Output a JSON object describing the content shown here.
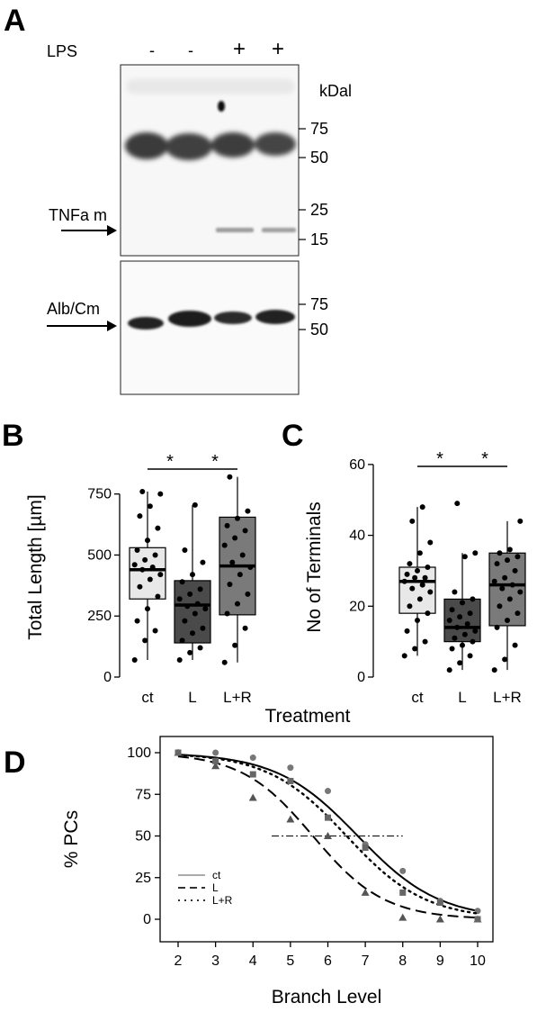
{
  "panels": {
    "a": "A",
    "b": "B",
    "c": "C",
    "d": "D"
  },
  "blot": {
    "lps_label": "LPS",
    "lanes": [
      "-",
      "-",
      "+",
      "+"
    ],
    "kda_label": "kDal",
    "upper_markers": [
      "75",
      "50",
      "25",
      "15"
    ],
    "lower_markers": [
      "75",
      "50"
    ],
    "upper_band_label": "TNFa m",
    "lower_band_label": "Alb/Cm"
  },
  "shared_xlabel": "Treatment",
  "chart_data": [
    {
      "type": "box",
      "panel": "B",
      "ylabel": "Total Length [µm]",
      "xlabel": "",
      "ylim": [
        0,
        900
      ],
      "yticks": [
        0,
        250,
        500,
        750
      ],
      "categories": [
        "ct",
        "L",
        "L+R"
      ],
      "box_colors": [
        "#e8e8e8",
        "#4a4a4a",
        "#7a7a7a"
      ],
      "boxes": [
        {
          "q1": 320,
          "median": 440,
          "q3": 530,
          "whisker_low": 70,
          "whisker_high": 760
        },
        {
          "q1": 140,
          "median": 295,
          "q3": 395,
          "whisker_low": 70,
          "whisker_high": 705
        },
        {
          "q1": 255,
          "median": 455,
          "q3": 655,
          "whisker_low": 60,
          "whisker_high": 820
        }
      ],
      "points": [
        [
          70,
          150,
          190,
          230,
          280,
          330,
          370,
          400,
          420,
          440,
          450,
          460,
          480,
          500,
          520,
          560,
          610,
          660,
          700,
          750,
          760
        ],
        [
          70,
          100,
          120,
          150,
          180,
          200,
          230,
          260,
          280,
          290,
          300,
          320,
          340,
          360,
          390,
          420,
          470,
          520,
          705
        ],
        [
          60,
          130,
          200,
          260,
          300,
          340,
          380,
          420,
          450,
          470,
          500,
          540,
          570,
          600,
          620,
          650,
          680,
          820
        ]
      ],
      "significance": [
        "*",
        "*"
      ]
    },
    {
      "type": "box",
      "panel": "C",
      "ylabel": "No of Terminals",
      "xlabel": "",
      "ylim": [
        0,
        62
      ],
      "yticks": [
        0,
        20,
        40,
        60
      ],
      "categories": [
        "ct",
        "L",
        "L+R"
      ],
      "box_colors": [
        "#e8e8e8",
        "#4a4a4a",
        "#7a7a7a"
      ],
      "boxes": [
        {
          "q1": 18,
          "median": 27,
          "q3": 31,
          "whisker_low": 6,
          "whisker_high": 48
        },
        {
          "q1": 10,
          "median": 14,
          "q3": 22,
          "whisker_low": 2,
          "whisker_high": 35
        },
        {
          "q1": 14.5,
          "median": 26,
          "q3": 35,
          "whisker_low": 2,
          "whisker_high": 44
        }
      ],
      "points": [
        [
          6,
          8,
          10,
          13,
          16,
          18,
          20,
          22,
          24,
          25,
          26,
          27,
          28,
          28,
          29,
          30,
          31,
          32,
          35,
          38,
          44,
          48
        ],
        [
          2,
          4,
          6,
          8,
          9,
          10,
          11,
          12,
          13,
          14,
          15,
          16,
          17,
          18,
          19,
          21,
          22,
          24,
          34,
          35,
          49
        ],
        [
          2,
          5,
          9,
          14,
          16,
          18,
          20,
          22,
          24,
          25,
          26,
          27,
          28,
          30,
          32,
          33,
          34,
          35,
          36,
          44
        ]
      ],
      "significance": [
        "*",
        "*"
      ]
    },
    {
      "type": "line",
      "panel": "D",
      "xlabel": "Branch Level",
      "ylabel": "% PCs",
      "xlim": [
        2,
        10
      ],
      "ylim": [
        0,
        100
      ],
      "xticks": [
        2,
        3,
        4,
        5,
        6,
        7,
        8,
        9,
        10
      ],
      "yticks": [
        0,
        25,
        50,
        75,
        100
      ],
      "reference_line": {
        "y": 50,
        "x_from": 4.5,
        "x_to": 8
      },
      "legend_position": "bottom-left",
      "series": [
        {
          "name": "ct",
          "marker": "circle",
          "line_style": "solid",
          "color": "#000000",
          "marker_color": "#777777",
          "x": [
            2,
            3,
            4,
            5,
            6,
            7,
            8,
            9,
            10
          ],
          "y": [
            100,
            100,
            97,
            91,
            77,
            45,
            29,
            11,
            5
          ],
          "fit": {
            "x50": 6.8,
            "slope": 0.92
          }
        },
        {
          "name": "L",
          "marker": "triangle",
          "line_style": "dashed",
          "color": "#000000",
          "marker_color": "#555555",
          "x": [
            2,
            3,
            4,
            5,
            6,
            7,
            8,
            9,
            10
          ],
          "y": [
            100,
            92,
            73,
            60,
            50,
            16,
            1,
            0,
            0
          ],
          "fit": {
            "x50": 5.6,
            "slope": 1.05
          }
        },
        {
          "name": "L+R",
          "marker": "square",
          "line_style": "dotted",
          "color": "#000000",
          "marker_color": "#666666",
          "x": [
            2,
            3,
            4,
            5,
            6,
            7,
            8,
            9,
            10
          ],
          "y": [
            100,
            95,
            87,
            83,
            61,
            43,
            16,
            10,
            0
          ],
          "fit": {
            "x50": 6.5,
            "slope": 0.95
          }
        }
      ]
    }
  ]
}
